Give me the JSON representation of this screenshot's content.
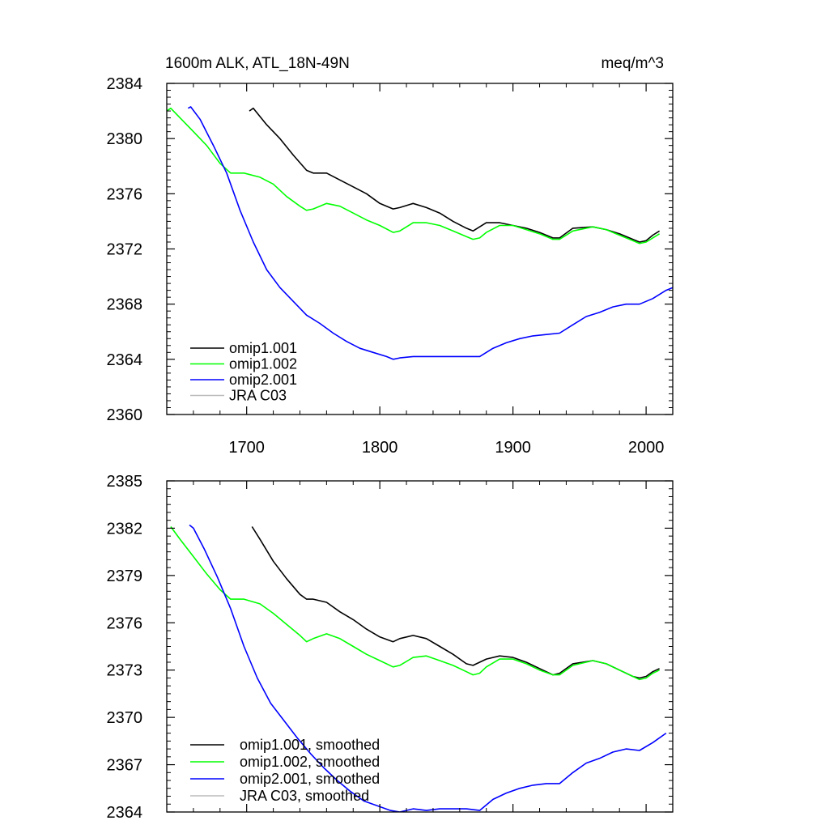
{
  "chart_data": [
    {
      "type": "line",
      "title_left": "1600m ALK, ATL_18N-49N",
      "title_right": "meq/m^3",
      "xlim": [
        1640,
        2020
      ],
      "ylim": [
        2360,
        2384
      ],
      "xticks": [
        1700,
        1800,
        1900,
        2000
      ],
      "x_tick_labels": [
        "1700",
        "1800",
        "1900",
        "2000"
      ],
      "yticks": [
        2360,
        2364,
        2368,
        2372,
        2376,
        2380,
        2384
      ],
      "y_tick_labels": [
        "2360",
        "2364",
        "2368",
        "2372",
        "2376",
        "2380",
        "2384"
      ],
      "series": [
        {
          "name": "omip1.001",
          "color": "#000000",
          "x": [
            1702,
            1705,
            1715,
            1725,
            1735,
            1745,
            1750,
            1760,
            1770,
            1780,
            1790,
            1800,
            1810,
            1815,
            1825,
            1835,
            1845,
            1855,
            1865,
            1870,
            1880,
            1890,
            1900,
            1910,
            1920,
            1930,
            1935,
            1945,
            1960,
            1970,
            1980,
            1990,
            1995,
            2000,
            2005,
            2010
          ],
          "y": [
            2382.0,
            2382.2,
            2381.0,
            2380.0,
            2378.8,
            2377.7,
            2377.5,
            2377.5,
            2377.0,
            2376.5,
            2376.0,
            2375.3,
            2374.9,
            2375.0,
            2375.3,
            2375.0,
            2374.6,
            2374.0,
            2373.5,
            2373.3,
            2373.9,
            2373.9,
            2373.7,
            2373.5,
            2373.2,
            2372.8,
            2372.8,
            2373.5,
            2373.6,
            2373.4,
            2373.1,
            2372.7,
            2372.5,
            2372.6,
            2373.0,
            2373.3
          ]
        },
        {
          "name": "omip1.002",
          "color": "#00ff00",
          "x": [
            1640,
            1643,
            1650,
            1660,
            1670,
            1680,
            1688,
            1698,
            1710,
            1720,
            1730,
            1740,
            1745,
            1750,
            1760,
            1770,
            1780,
            1790,
            1800,
            1810,
            1815,
            1825,
            1835,
            1845,
            1855,
            1865,
            1870,
            1875,
            1880,
            1890,
            1900,
            1910,
            1920,
            1930,
            1935,
            1945,
            1960,
            1970,
            1980,
            1990,
            1995,
            2000,
            2005,
            2010
          ],
          "y": [
            2382.0,
            2382.2,
            2381.5,
            2380.5,
            2379.5,
            2378.2,
            2377.5,
            2377.5,
            2377.2,
            2376.7,
            2375.8,
            2375.1,
            2374.8,
            2374.9,
            2375.3,
            2375.1,
            2374.6,
            2374.1,
            2373.7,
            2373.2,
            2373.3,
            2373.9,
            2373.9,
            2373.7,
            2373.3,
            2372.9,
            2372.7,
            2372.8,
            2373.2,
            2373.7,
            2373.7,
            2373.4,
            2373.1,
            2372.7,
            2372.7,
            2373.3,
            2373.6,
            2373.4,
            2373.0,
            2372.6,
            2372.4,
            2372.5,
            2372.8,
            2373.1
          ]
        },
        {
          "name": "omip2.001",
          "color": "#0000ff",
          "x": [
            1656,
            1658,
            1665,
            1675,
            1685,
            1695,
            1705,
            1715,
            1725,
            1735,
            1745,
            1755,
            1765,
            1775,
            1785,
            1795,
            1805,
            1810,
            1815,
            1825,
            1835,
            1845,
            1855,
            1865,
            1875,
            1885,
            1895,
            1905,
            1915,
            1925,
            1935,
            1945,
            1955,
            1965,
            1975,
            1985,
            1995,
            2005,
            2015,
            2020
          ],
          "y": [
            2382.2,
            2382.3,
            2381.4,
            2379.5,
            2377.5,
            2374.8,
            2372.5,
            2370.5,
            2369.2,
            2368.2,
            2367.2,
            2366.6,
            2365.9,
            2365.3,
            2364.8,
            2364.5,
            2364.2,
            2364.0,
            2364.1,
            2364.2,
            2364.2,
            2364.2,
            2364.2,
            2364.2,
            2364.2,
            2364.8,
            2365.2,
            2365.5,
            2365.7,
            2365.8,
            2365.9,
            2366.5,
            2367.1,
            2367.4,
            2367.8,
            2368.0,
            2368.0,
            2368.4,
            2369.0,
            2369.2
          ]
        },
        {
          "name": "JRA C03",
          "color": "#bbbbbb",
          "x": [],
          "y": []
        }
      ]
    },
    {
      "type": "line",
      "xlim": [
        1640,
        2020
      ],
      "ylim": [
        2364,
        2385
      ],
      "xticks": [
        1700,
        1800,
        1900,
        2000
      ],
      "yticks": [
        2364,
        2367,
        2370,
        2373,
        2376,
        2379,
        2382,
        2385
      ],
      "y_tick_labels": [
        "2364",
        "2367",
        "2370",
        "2373",
        "2376",
        "2379",
        "2382",
        "2385"
      ],
      "series": [
        {
          "name": "omip1.001, smoothed",
          "color": "#000000",
          "x": [
            1704,
            1710,
            1720,
            1730,
            1740,
            1745,
            1750,
            1760,
            1770,
            1780,
            1790,
            1800,
            1810,
            1815,
            1825,
            1835,
            1845,
            1855,
            1865,
            1870,
            1880,
            1890,
            1900,
            1910,
            1920,
            1930,
            1935,
            1945,
            1960,
            1970,
            1980,
            1990,
            1995,
            2000,
            2005,
            2010
          ],
          "y": [
            2382.1,
            2381.3,
            2379.9,
            2378.8,
            2377.8,
            2377.5,
            2377.5,
            2377.3,
            2376.7,
            2376.2,
            2375.6,
            2375.1,
            2374.8,
            2375.0,
            2375.2,
            2375.0,
            2374.5,
            2374.0,
            2373.4,
            2373.3,
            2373.7,
            2373.9,
            2373.8,
            2373.5,
            2373.1,
            2372.7,
            2372.8,
            2373.4,
            2373.6,
            2373.4,
            2373.0,
            2372.6,
            2372.5,
            2372.6,
            2372.9,
            2373.1
          ]
        },
        {
          "name": "omip1.002, smoothed",
          "color": "#00ff00",
          "x": [
            1643,
            1650,
            1660,
            1670,
            1680,
            1688,
            1698,
            1710,
            1720,
            1730,
            1740,
            1745,
            1750,
            1760,
            1770,
            1780,
            1790,
            1800,
            1810,
            1815,
            1825,
            1835,
            1845,
            1855,
            1865,
            1870,
            1875,
            1880,
            1890,
            1900,
            1910,
            1920,
            1930,
            1935,
            1945,
            1960,
            1970,
            1980,
            1990,
            1995,
            2000,
            2005,
            2010
          ],
          "y": [
            2382.1,
            2381.3,
            2380.2,
            2379.1,
            2378.1,
            2377.5,
            2377.5,
            2377.2,
            2376.6,
            2375.9,
            2375.2,
            2374.8,
            2375.0,
            2375.3,
            2375.0,
            2374.5,
            2374.0,
            2373.6,
            2373.2,
            2373.3,
            2373.8,
            2373.9,
            2373.6,
            2373.3,
            2372.9,
            2372.7,
            2372.8,
            2373.2,
            2373.7,
            2373.7,
            2373.4,
            2373.0,
            2372.7,
            2372.7,
            2373.3,
            2373.6,
            2373.4,
            2373.0,
            2372.6,
            2372.4,
            2372.5,
            2372.8,
            2373.0
          ]
        },
        {
          "name": "omip2.001, smoothed",
          "color": "#0000ff",
          "x": [
            1657,
            1660,
            1668,
            1678,
            1688,
            1698,
            1708,
            1718,
            1728,
            1738,
            1748,
            1758,
            1768,
            1778,
            1788,
            1798,
            1808,
            1815,
            1825,
            1835,
            1845,
            1855,
            1865,
            1875,
            1885,
            1895,
            1905,
            1915,
            1925,
            1935,
            1945,
            1955,
            1965,
            1975,
            1985,
            1995,
            2005,
            2015
          ],
          "y": [
            2382.2,
            2382.0,
            2380.7,
            2378.9,
            2376.9,
            2374.5,
            2372.5,
            2370.9,
            2369.8,
            2368.7,
            2367.7,
            2366.8,
            2366.0,
            2365.3,
            2364.7,
            2364.4,
            2364.1,
            2364.0,
            2364.2,
            2364.1,
            2364.2,
            2364.2,
            2364.2,
            2364.1,
            2364.8,
            2365.2,
            2365.5,
            2365.7,
            2365.8,
            2365.8,
            2366.5,
            2367.1,
            2367.4,
            2367.8,
            2368.0,
            2367.9,
            2368.4,
            2369.0
          ]
        },
        {
          "name": "JRA C03, smoothed",
          "color": "#bbbbbb",
          "x": [],
          "y": []
        }
      ]
    }
  ]
}
